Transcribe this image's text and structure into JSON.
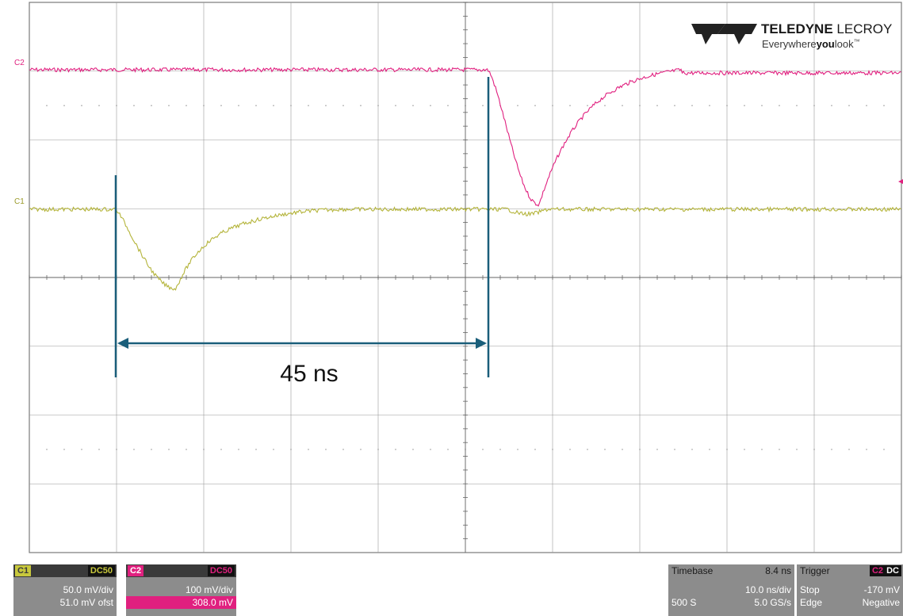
{
  "logo": {
    "brand_bold": "TELEDYNE",
    "brand_light": " LECROY",
    "tagline_a": "Everywhere",
    "tagline_b": "you",
    "tagline_c": "look",
    "tm": "™"
  },
  "traces": {
    "c2": {
      "label": "C2",
      "color": "#e0207f"
    },
    "c1": {
      "label": "C1",
      "color": "#b4b43a"
    }
  },
  "annotation": {
    "label": "45 ns",
    "color": "#1a5e7a"
  },
  "channel_boxes": [
    {
      "id": "c1",
      "name": "C1",
      "coupling": "DC50",
      "vdiv": "50.0 mV/div",
      "offset": "51.0 mV ofst",
      "color": "#c8c83c"
    },
    {
      "id": "c2",
      "name": "C2",
      "coupling": "DC50",
      "vdiv": "100 mV/div",
      "offset": "308.0 mV",
      "color": "#e0207f"
    }
  ],
  "timebase": {
    "label": "Timebase",
    "delay": "8.4 ns",
    "tdiv": "10.0 ns/div",
    "samples": "500 S",
    "rate": "5.0 GS/s"
  },
  "trigger": {
    "label": "Trigger",
    "source": "C2",
    "coupling": "DC",
    "mode": "Stop",
    "level": "-170 mV",
    "type": "Edge",
    "slope": "Negative"
  },
  "colors": {
    "grid": "#9a9a9a",
    "frame": "#7a7a7a",
    "trigger_marker": "#e0207f"
  }
}
